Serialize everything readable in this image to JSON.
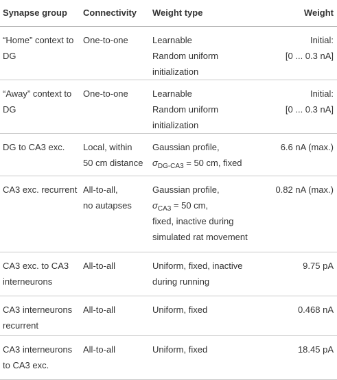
{
  "table": {
    "header": [
      "Synapse group",
      "Connectivity",
      "Weight type",
      "Weight"
    ],
    "rows": [
      [
        [
          "“Home” context to",
          "DG"
        ],
        [
          "One-to-one"
        ],
        [
          "Learnable",
          "Random uniform initialization"
        ],
        [
          "Initial:",
          "[0 ... 0.3 nA]"
        ]
      ],
      [
        [
          "“Away” context to",
          "DG"
        ],
        [
          "One-to-one"
        ],
        [
          "Learnable",
          "Random uniform initialization"
        ],
        [
          "Initial:",
          "[0 ... 0.3 nA]"
        ]
      ],
      [
        [
          "DG to CA3 exc."
        ],
        [
          "Local, within",
          "50 cm distance"
        ],
        [
          "Gaussian profile,",
          {
            "symbol": "σ",
            "subscript": "DG-CA3",
            "text": " = 50 cm, fixed"
          }
        ],
        [
          "6.6 nA (max.)"
        ]
      ],
      [
        [
          "CA3 exc. recurrent"
        ],
        [
          "All-to-all,",
          "no autapses"
        ],
        [
          "Gaussian profile,",
          {
            "symbol": "σ",
            "subscript": "CA3",
            "text": " = 50 cm,"
          },
          "fixed, inactive during",
          "simulated rat movement"
        ],
        [
          "0.82 nA (max.)"
        ]
      ],
      [
        [
          "CA3 exc. to CA3",
          "interneurons"
        ],
        [
          "All-to-all"
        ],
        [
          "Uniform, fixed, inactive",
          "during running"
        ],
        [
          "9.75 pA"
        ]
      ],
      [
        [
          "CA3 interneurons",
          "recurrent"
        ],
        [
          "All-to-all"
        ],
        [
          "Uniform, fixed"
        ],
        [
          "0.468 nA"
        ]
      ],
      [
        [
          "CA3 interneurons",
          "to CA3 exc."
        ],
        [
          "All-to-all"
        ],
        [
          "Uniform, fixed"
        ],
        [
          "18.45 pA"
        ]
      ]
    ]
  }
}
